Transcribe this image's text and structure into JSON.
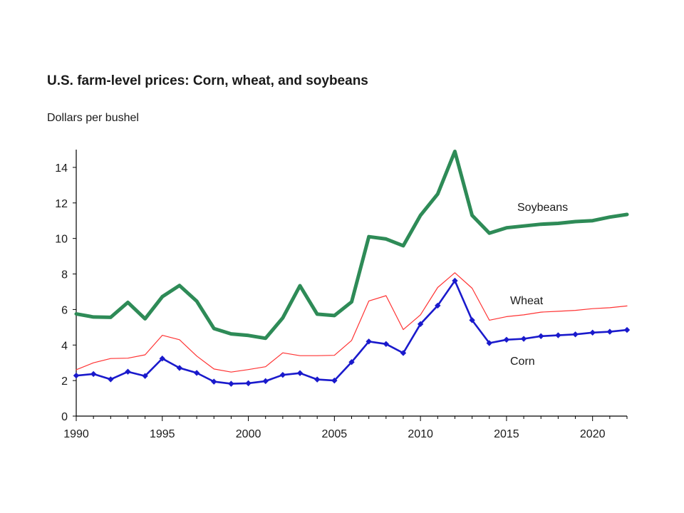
{
  "chart_data": {
    "type": "line",
    "title": "U.S. farm-level prices: Corn, wheat, and soybeans",
    "ylabel": "Dollars per bushel",
    "xlabel": "",
    "xlim": [
      1990,
      2022
    ],
    "ylim": [
      0,
      15
    ],
    "yticks": [
      0,
      2,
      4,
      6,
      8,
      10,
      12,
      14
    ],
    "xticks": [
      1990,
      1995,
      2000,
      2005,
      2010,
      2015,
      2020
    ],
    "grid": false,
    "legend": "inline labels",
    "x": [
      1990,
      1991,
      1992,
      1993,
      1994,
      1995,
      1996,
      1997,
      1998,
      1999,
      2000,
      2001,
      2002,
      2003,
      2004,
      2005,
      2006,
      2007,
      2008,
      2009,
      2010,
      2011,
      2012,
      2013,
      2014,
      2015,
      2016,
      2017,
      2018,
      2019,
      2020,
      2021,
      2022
    ],
    "series": [
      {
        "name": "Soybeans",
        "color": "#2e8b57",
        "values": [
          5.75,
          5.58,
          5.56,
          6.4,
          5.48,
          6.72,
          7.35,
          6.47,
          4.93,
          4.63,
          4.54,
          4.38,
          5.53,
          7.34,
          5.74,
          5.66,
          6.43,
          10.1,
          9.97,
          9.59,
          11.3,
          12.5,
          14.9,
          11.3,
          10.3,
          10.6,
          10.7,
          10.8,
          10.85,
          10.95,
          11.0,
          11.2,
          11.35
        ]
      },
      {
        "name": "Wheat",
        "color": "#ff3333",
        "values": [
          2.61,
          3.0,
          3.24,
          3.26,
          3.45,
          4.55,
          4.3,
          3.38,
          2.65,
          2.48,
          2.62,
          2.78,
          3.56,
          3.4,
          3.4,
          3.42,
          4.26,
          6.48,
          6.78,
          4.87,
          5.7,
          7.24,
          8.07,
          7.2,
          5.4,
          5.6,
          5.7,
          5.85,
          5.9,
          5.95,
          6.05,
          6.1,
          6.2
        ]
      },
      {
        "name": "Corn",
        "color": "#1a1acc",
        "values": [
          2.28,
          2.37,
          2.07,
          2.5,
          2.26,
          3.24,
          2.71,
          2.43,
          1.94,
          1.82,
          1.85,
          1.97,
          2.32,
          2.42,
          2.06,
          2.0,
          3.04,
          4.2,
          4.06,
          3.55,
          5.18,
          6.22,
          7.62,
          5.4,
          4.11,
          4.3,
          4.35,
          4.5,
          4.55,
          4.6,
          4.7,
          4.75,
          4.85
        ]
      }
    ]
  }
}
